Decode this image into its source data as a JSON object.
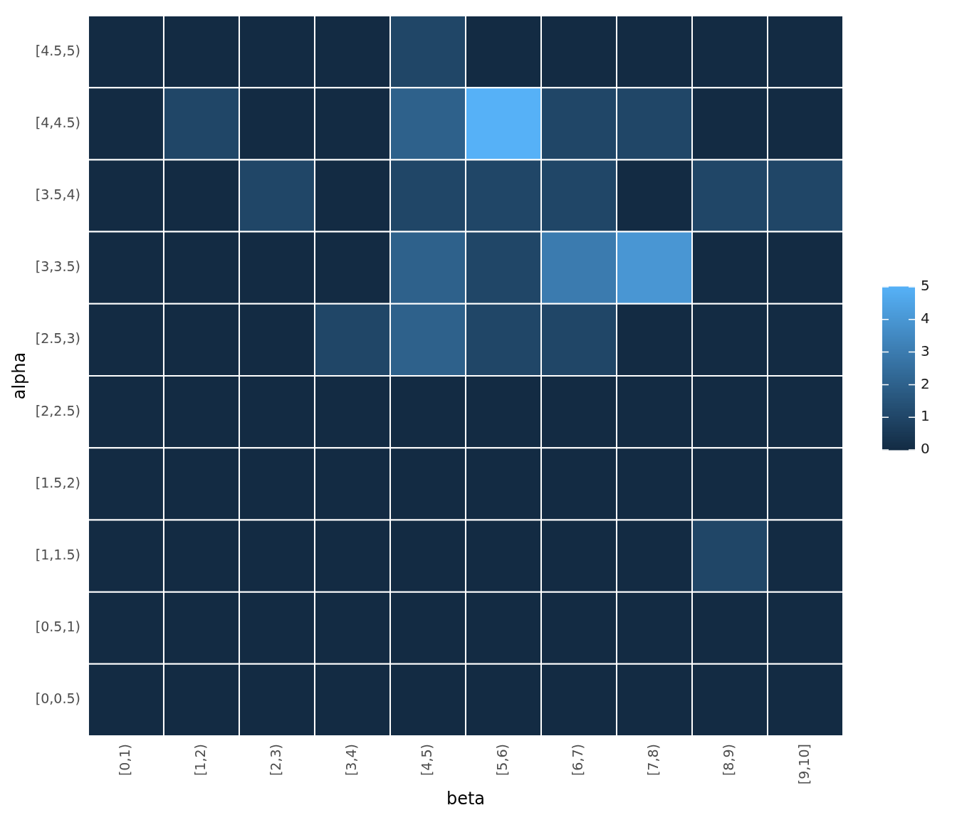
{
  "chart_data": {
    "type": "heatmap",
    "xlabel": "beta",
    "ylabel": "alpha",
    "categories": [
      "[0,1)",
      "[1,2)",
      "[2,3)",
      "[3,4)",
      "[4,5)",
      "[5,6)",
      "[6,7)",
      "[7,8)",
      "[8,9)",
      "[9,10]"
    ],
    "y_categories": [
      "[4.5,5)",
      "[4,4.5)",
      "[3.5,4)",
      "[3,3.5)",
      "[2.5,3)",
      "[2,2.5)",
      "[1.5,2)",
      "[1,1.5)",
      "[0.5,1)",
      "[0,0.5)"
    ],
    "cells": [
      [
        0,
        0,
        0,
        0,
        1,
        0,
        0,
        0,
        0,
        0
      ],
      [
        0,
        1,
        0,
        0,
        2,
        5,
        1,
        1,
        0,
        0
      ],
      [
        0,
        0,
        1,
        0,
        1,
        1,
        1,
        0,
        1,
        1
      ],
      [
        0,
        0,
        0,
        0,
        2,
        1,
        3,
        4,
        0,
        0
      ],
      [
        0,
        0,
        0,
        1,
        2,
        1,
        1,
        0,
        0,
        0
      ],
      [
        0,
        0,
        0,
        0,
        0,
        0,
        0,
        0,
        0,
        0
      ],
      [
        0,
        0,
        0,
        0,
        0,
        0,
        0,
        0,
        0,
        0
      ],
      [
        0,
        0,
        0,
        0,
        0,
        0,
        0,
        0,
        1,
        0
      ],
      [
        0,
        0,
        0,
        0,
        0,
        0,
        0,
        0,
        0,
        0
      ],
      [
        0,
        0,
        0,
        0,
        0,
        0,
        0,
        0,
        0,
        0
      ]
    ],
    "clim": [
      0,
      5
    ],
    "cticks": [
      0,
      1,
      2,
      3,
      4,
      5
    ]
  }
}
